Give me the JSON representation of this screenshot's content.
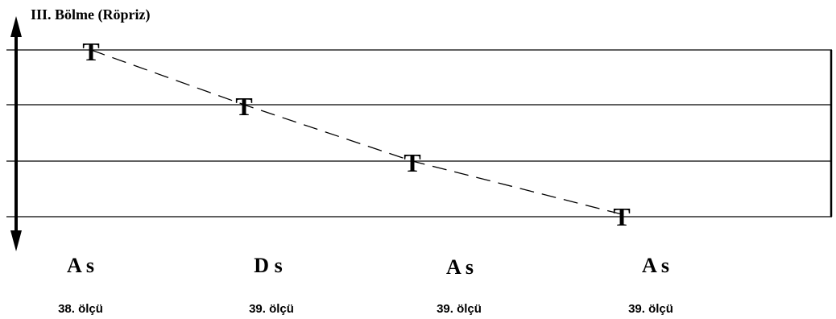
{
  "title": "III. Bölme (Röpriz)",
  "staff": {
    "line_count": 4,
    "line_color": "#000000"
  },
  "connector": {
    "style": "dashed",
    "color": "#000000"
  },
  "steps": [
    {
      "marker": "T",
      "chord": "A s",
      "measure": "38.  ölçü",
      "staff_line": 1
    },
    {
      "marker": "T",
      "chord": "D s",
      "measure": "39.  ölçü",
      "staff_line": 2
    },
    {
      "marker": "T",
      "chord": "A s",
      "measure": "39.  ölçü",
      "staff_line": 3
    },
    {
      "marker": "T",
      "chord": "A s",
      "measure": "39.  ölçü",
      "staff_line": 4
    }
  ]
}
